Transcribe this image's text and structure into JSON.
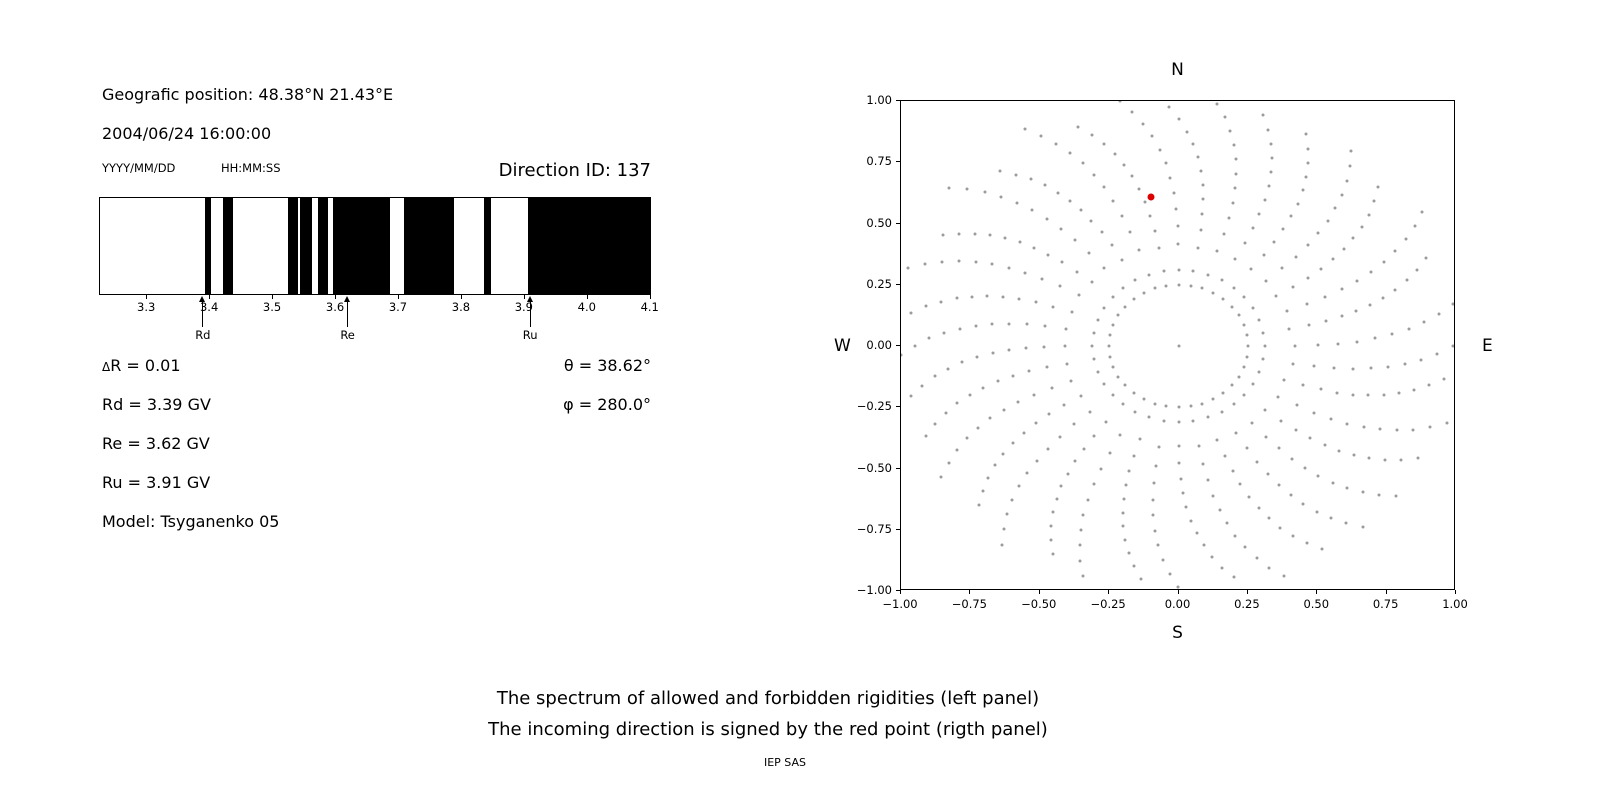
{
  "header": {
    "geo_position": "Geografic position: 48.38°N 21.43°E",
    "datetime": "2004/06/24 16:00:00",
    "date_format_label": "YYYY/MM/DD",
    "time_format_label": "HH:MM:SS",
    "direction_id": "Direction ID: 137"
  },
  "left_panel": {
    "delta_symbol": "Δ",
    "delta_value": "R = 0.01",
    "rd": "Rd = 3.39 GV",
    "re": "Re = 3.62 GV",
    "ru": "Ru = 3.91 GV",
    "model": "Model: Tsyganenko 05",
    "theta": "θ = 38.62°",
    "phi": "φ = 280.0°"
  },
  "caption": {
    "line1": "The spectrum of allowed and forbidden rigidities (left panel)",
    "line2": "The incoming direction is signed by the red point (rigth panel)",
    "credit": "IEP SAS"
  },
  "chart_data": [
    {
      "id": "rigidity-spectrum",
      "type": "heatmap",
      "description": "Spectrum of allowed (white) and forbidden (black) cosmic-ray rigidities in GV",
      "x_range": [
        3.225,
        4.102
      ],
      "x_tick_values": [
        3.3,
        3.4,
        3.5,
        3.6,
        3.7,
        3.8,
        3.9,
        4.0,
        4.1
      ],
      "x_tick_labels": [
        "3.3",
        "3.4",
        "3.5",
        "3.6",
        "3.7",
        "3.8",
        "3.9",
        "4.0",
        "4.1"
      ],
      "allowed_color": "#ffffff",
      "forbidden_color": "#000000",
      "forbidden_bands_gv": [
        [
          3.392,
          3.402
        ],
        [
          3.421,
          3.437
        ],
        [
          3.524,
          3.54
        ],
        [
          3.544,
          3.563
        ],
        [
          3.573,
          3.589
        ],
        [
          3.597,
          3.687
        ],
        [
          3.71,
          3.79
        ],
        [
          3.837,
          3.849
        ],
        [
          3.908,
          4.102
        ]
      ],
      "markers": [
        {
          "label": "Rd",
          "value_gv": 3.39
        },
        {
          "label": "Re",
          "value_gv": 3.62
        },
        {
          "label": "Ru",
          "value_gv": 3.91
        }
      ],
      "derived_values": {
        "delta_R_gv": 0.01,
        "Rd_gv": 3.39,
        "Re_gv": 3.62,
        "Ru_gv": 3.91,
        "theta_deg": 38.62,
        "phi_deg": 280.0,
        "model": "Tsyganenko 05"
      }
    },
    {
      "id": "direction-map",
      "type": "scatter",
      "description": "Incoming direction map; gray dot spokes radiate from an inner ring, red point marks the incoming direction",
      "x_range": [
        -1.0,
        1.0
      ],
      "y_range": [
        -1.0,
        1.0
      ],
      "x_tick_values": [
        -1.0,
        -0.75,
        -0.5,
        -0.25,
        0,
        0.25,
        0.5,
        0.75,
        1.0
      ],
      "x_tick_labels": [
        "−1.00",
        "−0.75",
        "−0.50",
        "−0.25",
        "0.00",
        "0.25",
        "0.50",
        "0.75",
        "1.00"
      ],
      "y_tick_values": [
        1.0,
        0.75,
        0.5,
        0.25,
        0,
        -0.25,
        -0.5,
        -0.75,
        -1.0
      ],
      "y_tick_labels": [
        "1.00",
        "0.75",
        "0.50",
        "0.25",
        "0.00",
        "−0.25",
        "−0.50",
        "−0.75",
        "−1.00"
      ],
      "compass": {
        "top": "N",
        "bottom": "S",
        "left": "W",
        "right": "E"
      },
      "gray_dots": {
        "color": "#9c9c9c",
        "spoke_count": 36,
        "angle_step_deg": 10,
        "inner_ring_radius": 0.25,
        "spoke_inner_radius": 0.31,
        "spoke_outer_radius": 1.06,
        "outer_jitter": 0.1,
        "dots_per_spoke": 12,
        "curvature_deg": 12,
        "center_dot": true
      },
      "red_point": {
        "x": -0.1,
        "y": 0.61,
        "color": "#dd0000"
      }
    }
  ]
}
